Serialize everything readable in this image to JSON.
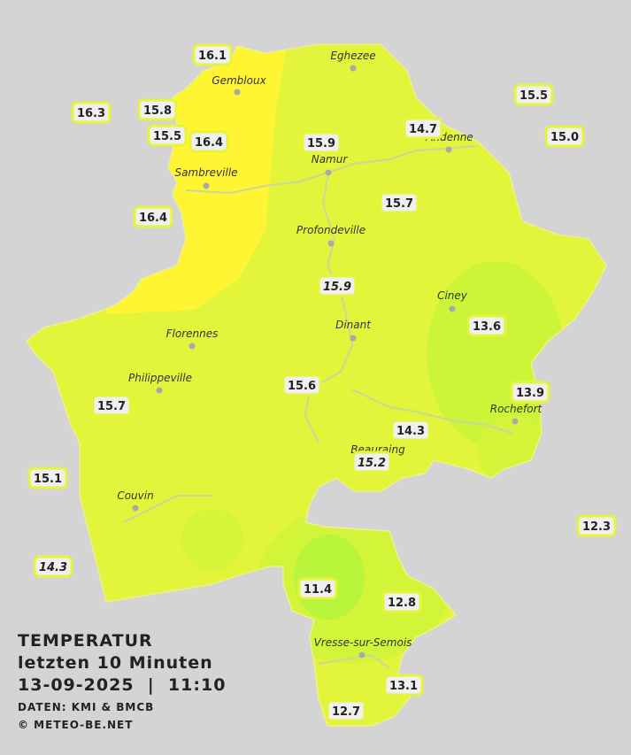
{
  "map": {
    "cities": [
      "Eghezee",
      "Gembloux",
      "Andenne",
      "Namur",
      "Sambreville",
      "Profondeville",
      "Ciney",
      "Dinant",
      "Florennes",
      "Philippeville",
      "Rochefort",
      "Beauraing",
      "Couvin",
      "Vresse-sur-Semois"
    ],
    "stations": [
      "16.1",
      "16.3",
      "15.8",
      "15.5",
      "16.4",
      "15.9",
      "14.7",
      "15.5",
      "15.0",
      "16.4",
      "15.7",
      "15.9",
      "13.6",
      "15.6",
      "13.9",
      "15.7",
      "14.3",
      "15.2",
      "15.1",
      "12.3",
      "14.3",
      "11.4",
      "12.8",
      "13.1",
      "12.7"
    ]
  },
  "legend": {
    "title": "TEMPERATUR",
    "period": "letzten 10 Minuten",
    "datetime": "13-09-2025  |  11:10",
    "source": "DATEN: KMI & BMCB",
    "copyright": "© METEO-BE.NET"
  }
}
